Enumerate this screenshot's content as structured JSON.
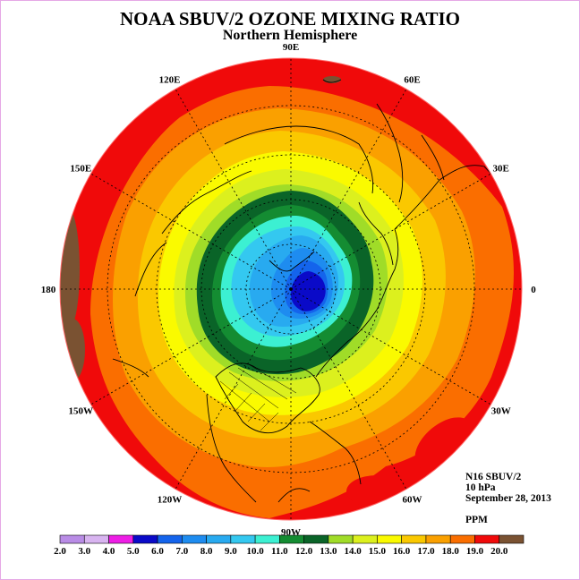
{
  "title": "NOAA SBUV/2 OZONE MIXING RATIO",
  "subtitle": "Northern Hemisphere",
  "info": {
    "instrument": "N16 SBUV/2",
    "level": "10 hPa",
    "date": "September 28, 2013",
    "unit": "PPM"
  },
  "longitude_labels": [
    "90E",
    "60E",
    "30E",
    "0",
    "30W",
    "60W",
    "90W",
    "120W",
    "150W",
    "180",
    "150E",
    "120E"
  ],
  "colorbar": {
    "ticks": [
      "2.0",
      "3.0",
      "4.0",
      "5.0",
      "6.0",
      "7.0",
      "8.0",
      "9.0",
      "10.0",
      "11.0",
      "12.0",
      "13.0",
      "14.0",
      "15.0",
      "16.0",
      "17.0",
      "18.0",
      "19.0",
      "20.0"
    ],
    "colors": [
      "#b98ce6",
      "#d8b4f0",
      "#ee1ee6",
      "#0a0ac8",
      "#1464ec",
      "#1e8cf0",
      "#28aaf0",
      "#34c8f0",
      "#3cf0d2",
      "#148c32",
      "#0a6428",
      "#a0dc28",
      "#dcf01e",
      "#fafa00",
      "#fac800",
      "#faa000",
      "#fa6e00",
      "#f00a0a",
      "#7a5232"
    ]
  },
  "colors": {
    "coast": "#000000",
    "grid": "#000000",
    "background": "#ffffff",
    "frame": "#e6a8e6"
  },
  "map_data": {
    "projection": "polar stereographic",
    "hemisphere": "north",
    "contour_interval_ppm": 1.0,
    "min_ppm_region": "5-6 over northern Scandinavia / Barents Sea",
    "max_ppm_region": "18-20 at low latitudes"
  }
}
